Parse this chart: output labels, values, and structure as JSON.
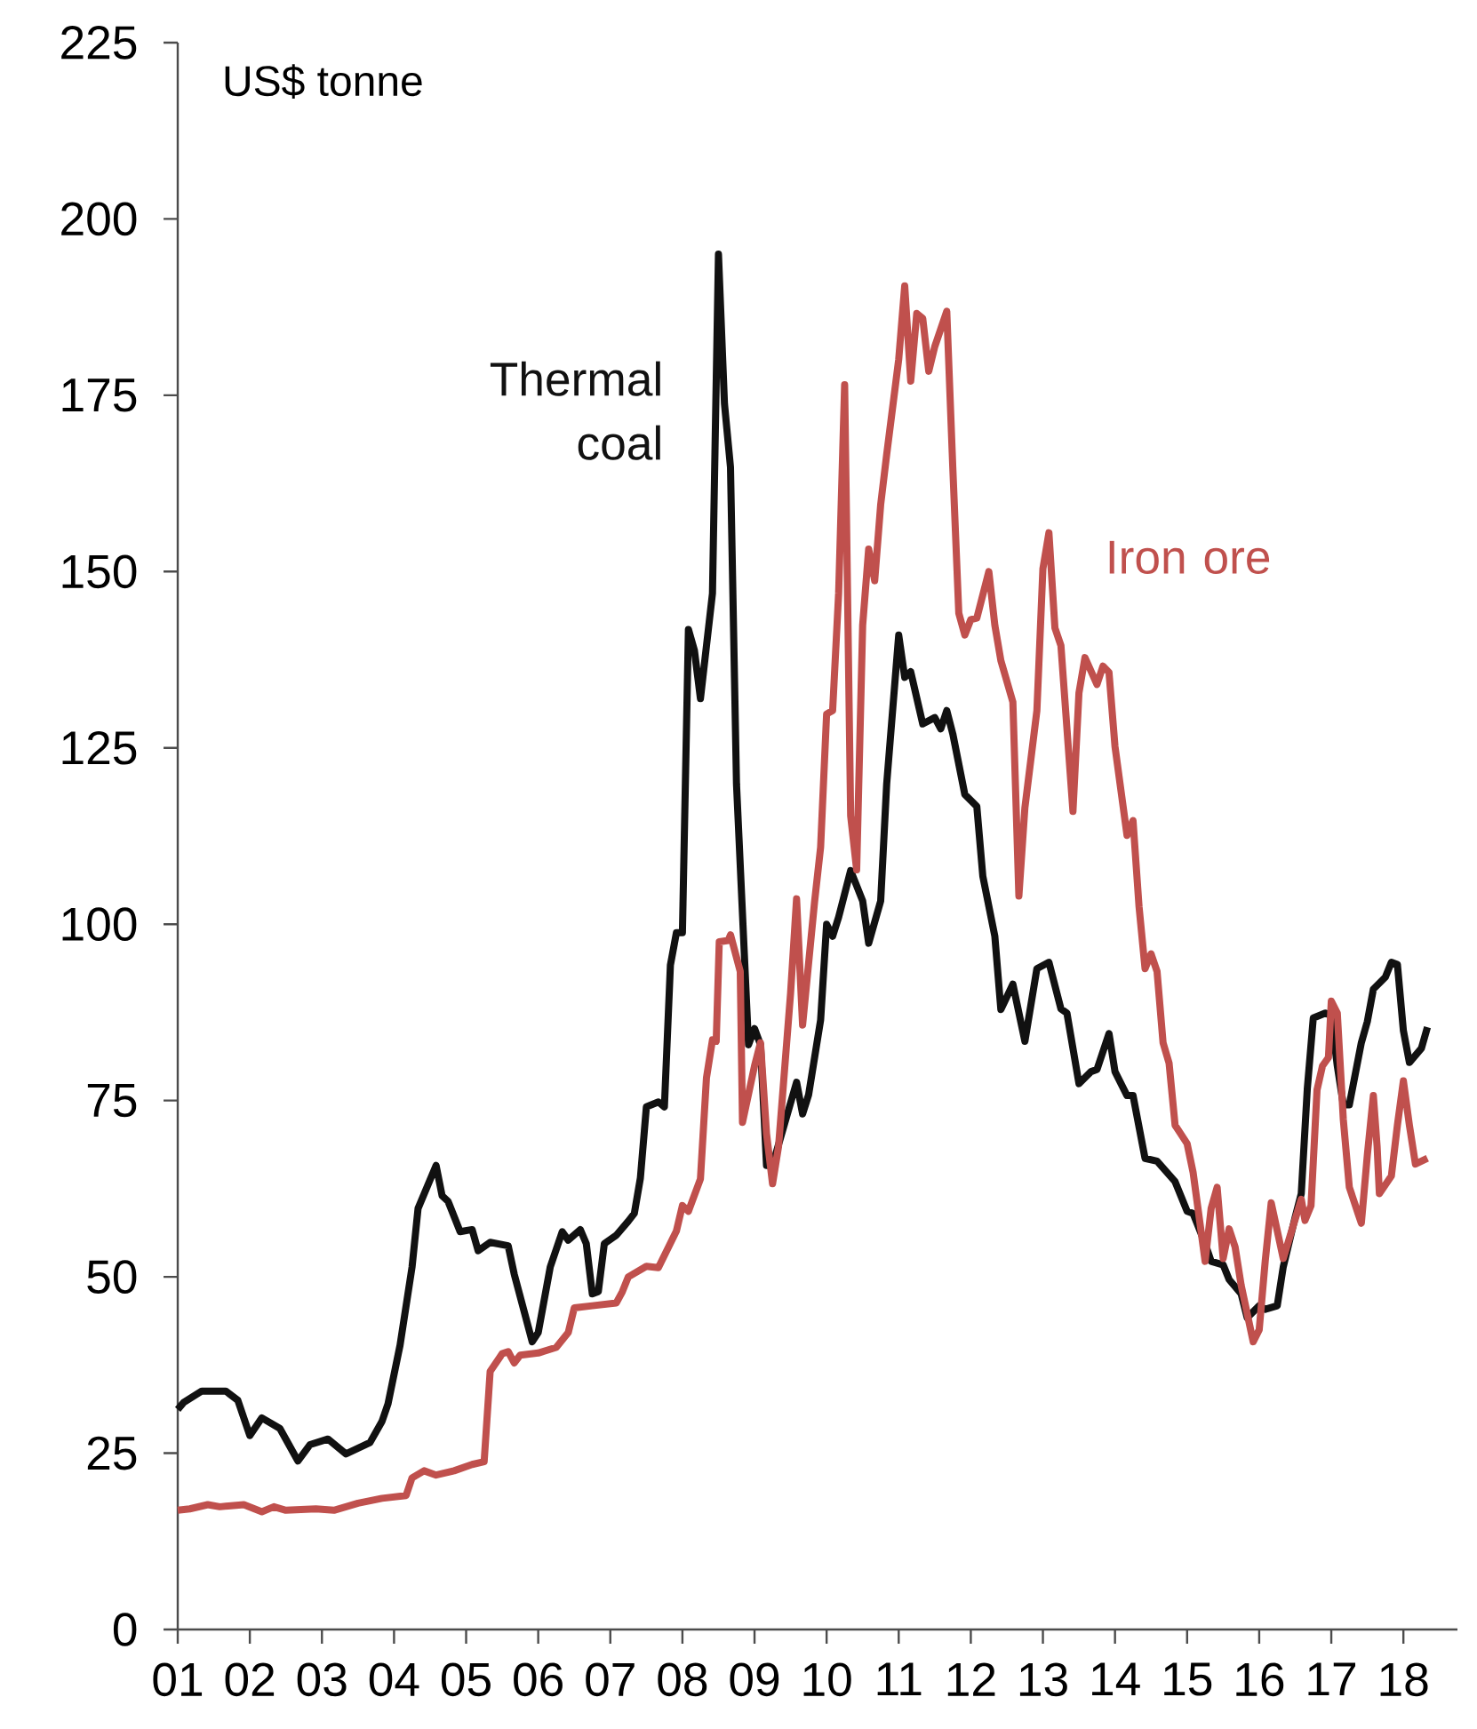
{
  "chart_data": {
    "type": "line",
    "ylabel": "US$ tonne",
    "xlim": [
      "2001-01",
      "2018-10"
    ],
    "ylim": [
      0,
      225
    ],
    "yticks": [
      0,
      25,
      50,
      75,
      100,
      125,
      150,
      175,
      200,
      225
    ],
    "xticks": [
      {
        "value": "2001",
        "label": "01"
      },
      {
        "value": "2002",
        "label": "02"
      },
      {
        "value": "2003",
        "label": "03"
      },
      {
        "value": "2004",
        "label": "04"
      },
      {
        "value": "2005",
        "label": "05"
      },
      {
        "value": "2006",
        "label": "06"
      },
      {
        "value": "2007",
        "label": "07"
      },
      {
        "value": "2008",
        "label": "08"
      },
      {
        "value": "2009",
        "label": "09"
      },
      {
        "value": "2010",
        "label": "10"
      },
      {
        "value": "2011",
        "label": "11"
      },
      {
        "value": "2012",
        "label": "12"
      },
      {
        "value": "2013",
        "label": "13"
      },
      {
        "value": "2014",
        "label": "14"
      },
      {
        "value": "2015",
        "label": "15"
      },
      {
        "value": "2016",
        "label": "16"
      },
      {
        "value": "2017",
        "label": "17"
      },
      {
        "value": "2018",
        "label": "18"
      }
    ],
    "line_style": "solid",
    "series": [
      {
        "name": "Thermal coal",
        "color": "#111111",
        "x": [
          "2001-01",
          "2001-02",
          "2001-05",
          "2001-09",
          "2001-11",
          "2002-01",
          "2002-03",
          "2002-06",
          "2002-09",
          "2002-11",
          "2003-02",
          "2003-05",
          "2003-09",
          "2003-11",
          "2003-12",
          "2004-02",
          "2004-04",
          "2004-05",
          "2004-08",
          "2004-09",
          "2004-10",
          "2004-12",
          "2005-02",
          "2005-03",
          "2005-05",
          "2005-08",
          "2005-09",
          "2005-12",
          "2006-01",
          "2006-03",
          "2006-05",
          "2006-06",
          "2006-08",
          "2006-09",
          "2006-10",
          "2006-11",
          "2006-12",
          "2007-02",
          "2007-04",
          "2007-05",
          "2007-06",
          "2007-07",
          "2007-09",
          "2007-10",
          "2007-11",
          "2007-12",
          "2008-01",
          "2008-02",
          "2008-03",
          "2008-04",
          "2008-06",
          "2008-07",
          "2008-08",
          "2008-09",
          "2008-10",
          "2008-12",
          "2009-01",
          "2009-02",
          "2009-03",
          "2009-04",
          "2009-08",
          "2009-09",
          "2009-10",
          "2009-12",
          "2010-01",
          "2010-02",
          "2010-03",
          "2010-05",
          "2010-07",
          "2010-08",
          "2010-10",
          "2010-11",
          "2011-01",
          "2011-02",
          "2011-03",
          "2011-05",
          "2011-07",
          "2011-08",
          "2011-09",
          "2011-10",
          "2011-12",
          "2012-02",
          "2012-03",
          "2012-05",
          "2012-06",
          "2012-08",
          "2012-10",
          "2012-12",
          "2013-02",
          "2013-04",
          "2013-05",
          "2013-07",
          "2013-09",
          "2013-10",
          "2013-12",
          "2014-01",
          "2014-03",
          "2014-04",
          "2014-06",
          "2014-08",
          "2014-11",
          "2015-01",
          "2015-02",
          "2015-04",
          "2015-05",
          "2015-07",
          "2015-08",
          "2015-10",
          "2015-11",
          "2016-01",
          "2016-02",
          "2016-04",
          "2016-05",
          "2016-07",
          "2016-08",
          "2016-09",
          "2016-10",
          "2016-12",
          "2017-01",
          "2017-02",
          "2017-03",
          "2017-04",
          "2017-06",
          "2017-07",
          "2017-08",
          "2017-10",
          "2017-11",
          "2017-12",
          "2018-01",
          "2018-02",
          "2018-04",
          "2018-05"
        ],
        "values": [
          31.2,
          32.2,
          33.8,
          33.8,
          32.5,
          27.5,
          30.0,
          28.5,
          23.9,
          26.2,
          27.0,
          24.9,
          26.5,
          29.5,
          32.0,
          40.3,
          51.4,
          59.7,
          65.8,
          61.5,
          60.7,
          56.4,
          56.7,
          53.7,
          54.9,
          54.4,
          50.4,
          40.8,
          42.1,
          51.4,
          56.4,
          55.2,
          56.7,
          54.7,
          47.6,
          47.9,
          54.7,
          55.9,
          57.9,
          59.0,
          64.0,
          74.1,
          74.8,
          74.1,
          94.2,
          98.8,
          98.8,
          141.8,
          138.8,
          132.0,
          146.9,
          195.0,
          173.8,
          164.8,
          119.9,
          82.9,
          85.2,
          82.9,
          65.8,
          65.8,
          77.6,
          73.1,
          75.8,
          86.4,
          100.0,
          98.3,
          101.0,
          107.6,
          103.3,
          97.3,
          103.3,
          119.9,
          141.0,
          135.0,
          135.8,
          128.4,
          129.3,
          127.7,
          130.3,
          127.0,
          118.4,
          116.7,
          106.8,
          98.3,
          87.9,
          91.5,
          83.4,
          93.7,
          94.6,
          88.0,
          87.4,
          77.4,
          79.1,
          79.4,
          84.5,
          79.1,
          75.7,
          75.7,
          66.8,
          66.4,
          63.5,
          59.3,
          59.0,
          54.7,
          52.2,
          51.7,
          49.6,
          47.6,
          44.2,
          45.9,
          45.4,
          45.9,
          51.4,
          58.5,
          61.8,
          76.6,
          86.7,
          87.4,
          87.0,
          79.9,
          74.4,
          74.4,
          83.2,
          86.2,
          90.8,
          92.5,
          94.6,
          94.3,
          84.9,
          80.4,
          82.4,
          85.4
        ]
      },
      {
        "name": "Iron ore",
        "color": "#c0504d",
        "x": [
          "2001-01",
          "2001-03",
          "2001-06",
          "2001-08",
          "2001-12",
          "2002-03",
          "2002-05",
          "2002-07",
          "2002-12",
          "2003-03",
          "2003-07",
          "2003-11",
          "2004-03",
          "2004-04",
          "2004-06",
          "2004-08",
          "2004-11",
          "2005-02",
          "2005-04",
          "2005-05",
          "2005-07",
          "2005-08",
          "2005-09",
          "2005-10",
          "2006-01",
          "2006-04",
          "2006-06",
          "2006-07",
          "2006-10",
          "2007-02",
          "2007-03",
          "2007-04",
          "2007-07",
          "2007-09",
          "2007-12",
          "2008-01",
          "2008-02",
          "2008-04",
          "2008-05",
          "2008-06",
          "2008-06-20",
          "2008-07-05",
          "2008-08-20",
          "2008-09",
          "2008-10-20",
          "2008-11",
          "2009-01",
          "2009-02",
          "2009-03",
          "2009-04",
          "2009-05",
          "2009-07",
          "2009-08",
          "2009-09",
          "2009-11",
          "2009-12",
          "2010-01",
          "2010-02",
          "2010-03",
          "2010-04",
          "2010-05",
          "2010-06",
          "2010-07",
          "2010-08",
          "2010-09",
          "2010-10",
          "2010-11",
          "2011-01",
          "2011-02",
          "2011-03",
          "2011-04",
          "2011-05",
          "2011-06",
          "2011-07",
          "2011-09",
          "2011-10",
          "2011-11",
          "2011-12",
          "2012-01",
          "2012-02",
          "2012-04",
          "2012-05",
          "2012-06",
          "2012-08",
          "2012-09",
          "2012-10",
          "2012-12",
          "2013-01",
          "2013-02",
          "2013-03",
          "2013-04",
          "2013-06",
          "2013-07",
          "2013-08",
          "2013-10",
          "2013-11",
          "2013-12",
          "2014-01",
          "2014-03",
          "2014-04",
          "2014-05",
          "2014-06",
          "2014-07",
          "2014-08",
          "2014-09",
          "2014-10",
          "2014-11",
          "2015-01",
          "2015-02",
          "2015-04",
          "2015-05",
          "2015-06",
          "2015-07",
          "2015-08",
          "2015-09",
          "2015-10",
          "2015-12",
          "2016-01",
          "2016-02",
          "2016-03",
          "2016-05",
          "2016-08",
          "2016-08-20",
          "2016-09-20",
          "2016-10-20",
          "2016-11-17",
          "2016-12-17",
          "2017-01",
          "2017-02",
          "2017-03",
          "2017-04",
          "2017-06",
          "2017-07",
          "2017-08",
          "2017-08-20",
          "2017-09",
          "2017-11",
          "2017-12",
          "2018-01",
          "2018-02",
          "2018-03",
          "2018-05"
        ],
        "values": [
          16.9,
          17.1,
          17.7,
          17.4,
          17.7,
          16.7,
          17.4,
          16.9,
          17.1,
          16.9,
          17.9,
          18.6,
          19.0,
          21.5,
          22.5,
          21.9,
          22.5,
          23.4,
          23.8,
          36.6,
          39.1,
          39.4,
          37.8,
          38.9,
          39.2,
          40.0,
          42.1,
          45.6,
          45.9,
          46.3,
          47.9,
          50.0,
          51.5,
          51.3,
          56.5,
          60.1,
          59.3,
          63.9,
          78.2,
          83.6,
          83.4,
          97.5,
          97.7,
          98.5,
          93.3,
          71.9,
          79.9,
          83.2,
          70.3,
          63.2,
          68.5,
          90.2,
          103.6,
          85.7,
          103.2,
          110.9,
          129.8,
          130.3,
          146.9,
          176.5,
          115.4,
          107.7,
          142.4,
          153.2,
          148.7,
          159.5,
          166.6,
          180.1,
          190.5,
          177.0,
          186.6,
          185.9,
          178.4,
          181.9,
          186.9,
          164.8,
          144.1,
          141.0,
          143.2,
          143.4,
          150.0,
          142.4,
          137.4,
          131.5,
          104.0,
          116.5,
          130.3,
          150.4,
          155.5,
          142.0,
          139.5,
          116.0,
          132.8,
          137.8,
          134.0,
          136.6,
          135.7,
          125.2,
          112.6,
          114.7,
          102.5,
          93.7,
          95.8,
          93.3,
          83.2,
          80.3,
          71.5,
          68.9,
          64.8,
          52.2,
          59.7,
          62.7,
          52.6,
          56.8,
          54.2,
          48.8,
          40.8,
          42.5,
          52.2,
          60.5,
          52.6,
          61.0,
          58.0,
          60.1,
          76.5,
          79.9,
          81.1,
          89.1,
          87.4,
          72.3,
          62.7,
          57.6,
          67.3,
          75.7,
          68.5,
          61.8,
          64.3,
          71.5,
          77.8,
          71.5,
          66.0,
          66.8
        ]
      }
    ]
  }
}
